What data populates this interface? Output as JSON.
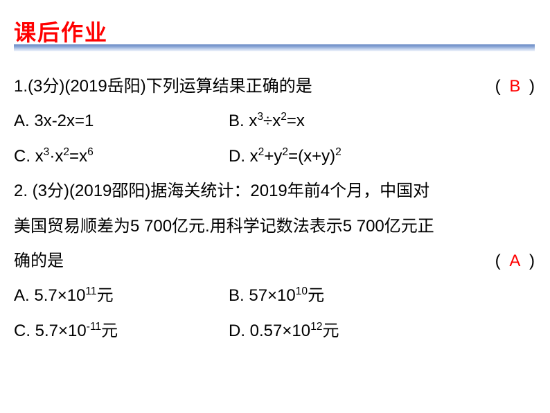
{
  "header": {
    "title": "课后作业",
    "title_color": "#ff0000",
    "title_fontsize": 32,
    "underline_gradient": [
      "#6b8bc4",
      "#8aa6d6",
      "#c8d6ee",
      "#eef3fb"
    ]
  },
  "body": {
    "text_color": "#000000",
    "answer_color": "#ff0000",
    "fontsize": 24,
    "line_height": 2.1
  },
  "q1": {
    "stem": "1.(3分)(2019岳阳)下列运算结果正确的是",
    "paren_open": "(",
    "paren_close": ")",
    "answer": "B",
    "optA_prefix": "A. 3x-2x=1",
    "optB_prefix": "B. x",
    "optB_sup1": "3",
    "optB_mid": "÷x",
    "optB_sup2": "2",
    "optB_tail": "=x",
    "optC_prefix": "C. x",
    "optC_sup1": "3",
    "optC_mid": "·x",
    "optC_sup2": "2",
    "optC_mid2": "=x",
    "optC_sup3": "6",
    "optD_prefix": "D. x",
    "optD_sup1": "2",
    "optD_mid": "+y",
    "optD_sup2": "2",
    "optD_mid2": "=(x+y)",
    "optD_sup3": "2"
  },
  "q2": {
    "stem_l1": "2. (3分)(2019邵阳)据海关统计：2019年前4个月，中国对",
    "stem_l2": "美国贸易顺差为5 700亿元.用科学记数法表示5 700亿元正",
    "stem_l3": "确的是",
    "paren_open": "(",
    "paren_close": ")",
    "answer": "A",
    "optA_prefix": "A. 5.7×10",
    "optA_sup": "11",
    "optA_tail": "元",
    "optB_prefix": "B. 57×10",
    "optB_sup": "10",
    "optB_tail": "元",
    "optC_prefix": "C. 5.7×10",
    "optC_sup": "-11",
    "optC_tail": "元",
    "optD_prefix": "D. 0.57×10",
    "optD_sup": "12",
    "optD_tail": "元"
  }
}
